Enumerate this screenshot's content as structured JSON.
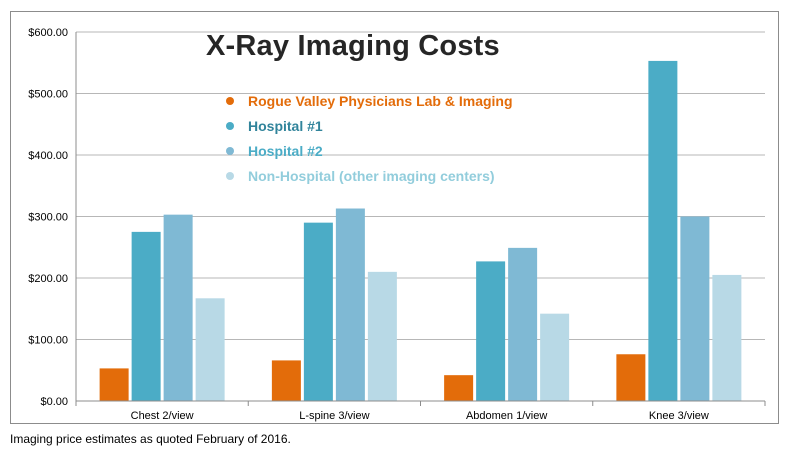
{
  "chart_data": {
    "type": "bar",
    "title": "X-Ray Imaging Costs",
    "categories": [
      "Chest 2/view",
      "L-spine 3/view",
      "Abdomen 1/view",
      "Knee 3/view"
    ],
    "series": [
      {
        "name": "Rogue Valley Physicians Lab & Imaging",
        "color": "#e36c0a",
        "values": [
          53,
          66,
          42,
          76
        ]
      },
      {
        "name": "Hospital #1",
        "color": "#4bacc6",
        "values": [
          275,
          290,
          227,
          553
        ]
      },
      {
        "name": "Hospital #2",
        "color": "#7fb9d4",
        "values": [
          303,
          313,
          249,
          300
        ]
      },
      {
        "name": "Non-Hospital (other imaging centers)",
        "color": "#b8d9e6",
        "values": [
          167,
          210,
          142,
          205
        ]
      }
    ],
    "ylim": [
      0,
      600
    ],
    "yticks": [
      0,
      100,
      200,
      300,
      400,
      500,
      600
    ],
    "ytick_labels": [
      "$0.00",
      "$100.00",
      "$200.00",
      "$300.00",
      "$400.00",
      "$500.00",
      "$600.00"
    ],
    "grid": true,
    "legend_position": "top-center"
  },
  "footnote": "Imaging price estimates as quoted February of 2016."
}
